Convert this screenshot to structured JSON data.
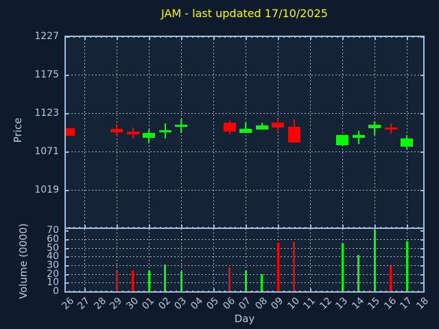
{
  "title": "JAM - last updated 17/10/2025",
  "colors": {
    "figure_background": "#0f1b2c",
    "axes_background": "#152336",
    "title": "#f8f800",
    "axis_text": "#b5cbe0",
    "spine": "#a2c0de",
    "up": "#00ff00",
    "down": "#ff0000"
  },
  "axes": {
    "price_label": "Price",
    "volume_label": "Volume (0000)",
    "x_label": "Day"
  },
  "chart_data": {
    "type": "candlestick-with-volume",
    "title": "JAM - last updated 17/10/2025",
    "xlabel": "Day",
    "ylabel_price": "Price",
    "ylabel_volume": "Volume (0000)",
    "x_categories": [
      "26",
      "27",
      "28",
      "29",
      "30",
      "01",
      "02",
      "03",
      "04",
      "05",
      "06",
      "07",
      "08",
      "09",
      "10",
      "11",
      "12",
      "13",
      "14",
      "15",
      "16",
      "17",
      "18"
    ],
    "price_ticks": [
      1227,
      1175,
      1123,
      1071,
      1019
    ],
    "volume_ticks": [
      70,
      60,
      50,
      40,
      30,
      20,
      10,
      0
    ],
    "price_ylim": [
      967,
      1228
    ],
    "volume_ylim": [
      0,
      73
    ],
    "grid": "dashed, every 2nd day vertical; price every 52; volume every 10",
    "legend_position": "none",
    "candles": [
      {
        "day": "26",
        "open": 1103,
        "high": 1103,
        "low": 1092,
        "close": 1092,
        "volume": 0
      },
      {
        "day": "29",
        "open": 1102,
        "high": 1108,
        "low": 1092,
        "close": 1097,
        "volume": 23
      },
      {
        "day": "30",
        "open": 1098,
        "high": 1104,
        "low": 1089,
        "close": 1094,
        "volume": 24
      },
      {
        "day": "01",
        "open": 1090,
        "high": 1101,
        "low": 1082,
        "close": 1096,
        "volume": 24
      },
      {
        "day": "02",
        "open": 1097,
        "high": 1109,
        "low": 1089,
        "close": 1100,
        "volume": 31
      },
      {
        "day": "03",
        "open": 1104,
        "high": 1115,
        "low": 1096,
        "close": 1107,
        "volume": 23
      },
      {
        "day": "06",
        "open": 1110,
        "high": 1113,
        "low": 1094,
        "close": 1098,
        "volume": 28
      },
      {
        "day": "07",
        "open": 1096,
        "high": 1110,
        "low": 1096,
        "close": 1102,
        "volume": 24
      },
      {
        "day": "08",
        "open": 1101,
        "high": 1110,
        "low": 1101,
        "close": 1106,
        "volume": 20
      },
      {
        "day": "09",
        "open": 1110,
        "high": 1116,
        "low": 1099,
        "close": 1104,
        "volume": 56
      },
      {
        "day": "10",
        "open": 1105,
        "high": 1115,
        "low": 1083,
        "close": 1083,
        "volume": 57
      },
      {
        "day": "13",
        "open": 1079,
        "high": 1093,
        "low": 1079,
        "close": 1093,
        "volume": 55
      },
      {
        "day": "14",
        "open": 1090,
        "high": 1099,
        "low": 1081,
        "close": 1093,
        "volume": 42
      },
      {
        "day": "15",
        "open": 1103,
        "high": 1112,
        "low": 1093,
        "close": 1107,
        "volume": 71
      },
      {
        "day": "16",
        "open": 1104,
        "high": 1109,
        "low": 1095,
        "close": 1101,
        "volume": 29
      },
      {
        "day": "17",
        "open": 1078,
        "high": 1093,
        "low": 1075,
        "close": 1089,
        "volume": 58
      }
    ]
  }
}
